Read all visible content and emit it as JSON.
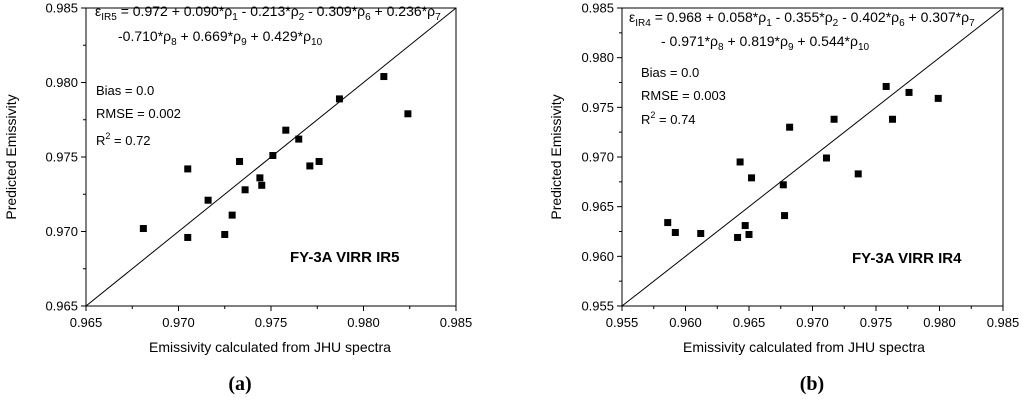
{
  "chart_data": [
    {
      "type": "scatter",
      "panel_label": "(a)",
      "xlabel": "Emissivity calculated from JHU spectra",
      "ylabel": "Predicted Emissivity",
      "xlim": [
        0.965,
        0.985
      ],
      "ylim": [
        0.965,
        0.985
      ],
      "xticks": [
        "0.965",
        "0.970",
        "0.975",
        "0.980",
        "0.985"
      ],
      "yticks": [
        "0.965",
        "0.970",
        "0.975",
        "0.980",
        "0.985"
      ],
      "equation": {
        "symbol": "ε",
        "symbol_sub": "IR5",
        "line1": [
          {
            "t": " = 0.972 + 0.090*ρ"
          },
          {
            "s": "1"
          },
          {
            "t": " - 0.213*ρ"
          },
          {
            "s": "2"
          },
          {
            "t": " - 0.309*ρ"
          },
          {
            "s": "6"
          },
          {
            "t": " + 0.236*ρ"
          },
          {
            "s": "7"
          }
        ],
        "line2": [
          {
            "t": "-0.710*ρ"
          },
          {
            "s": "8"
          },
          {
            "t": " + 0.669*ρ"
          },
          {
            "s": "9"
          },
          {
            "t": " + 0.429*ρ"
          },
          {
            "s": "10"
          }
        ]
      },
      "bias": "Bias = 0.0",
      "rmse": "RMSE = 0.002",
      "r2_prefix": "R",
      "r2_sup": "2",
      "r2_value": " = 0.72",
      "annotation": "FY-3A VIRR IR5",
      "reference_line": "1:1",
      "points": [
        {
          "x": 0.9681,
          "y": 0.9702
        },
        {
          "x": 0.9705,
          "y": 0.9742
        },
        {
          "x": 0.9705,
          "y": 0.9696
        },
        {
          "x": 0.9716,
          "y": 0.9721
        },
        {
          "x": 0.9725,
          "y": 0.9698
        },
        {
          "x": 0.9729,
          "y": 0.9711
        },
        {
          "x": 0.9733,
          "y": 0.9747
        },
        {
          "x": 0.9736,
          "y": 0.9728
        },
        {
          "x": 0.9744,
          "y": 0.9736
        },
        {
          "x": 0.9745,
          "y": 0.9731
        },
        {
          "x": 0.9751,
          "y": 0.9751
        },
        {
          "x": 0.9758,
          "y": 0.9768
        },
        {
          "x": 0.9765,
          "y": 0.9762
        },
        {
          "x": 0.9771,
          "y": 0.9744
        },
        {
          "x": 0.9776,
          "y": 0.9747
        },
        {
          "x": 0.9787,
          "y": 0.9789
        },
        {
          "x": 0.9811,
          "y": 0.9804
        },
        {
          "x": 0.9824,
          "y": 0.9779
        }
      ]
    },
    {
      "type": "scatter",
      "panel_label": "(b)",
      "xlabel": "Emissivity calculated from JHU spectra",
      "ylabel": "Predicted Emissivity",
      "xlim": [
        0.955,
        0.985
      ],
      "ylim": [
        0.955,
        0.985
      ],
      "xticks": [
        "0.955",
        "0.960",
        "0.965",
        "0.970",
        "0.975",
        "0.980",
        "0.985"
      ],
      "yticks": [
        "0.955",
        "0.960",
        "0.965",
        "0.970",
        "0.975",
        "0.980",
        "0.985"
      ],
      "equation": {
        "symbol": "ε",
        "symbol_sub": "IR4",
        "line1": [
          {
            "t": " = 0.968 + 0.058*ρ"
          },
          {
            "s": "1"
          },
          {
            "t": " - 0.355*ρ"
          },
          {
            "s": "2"
          },
          {
            "t": " - 0.402*ρ"
          },
          {
            "s": "6"
          },
          {
            "t": " + 0.307*ρ"
          },
          {
            "s": "7"
          }
        ],
        "line2": [
          {
            "t": "- 0.971*ρ"
          },
          {
            "s": "8"
          },
          {
            "t": " + 0.819*ρ"
          },
          {
            "s": "9"
          },
          {
            "t": " + 0.544*ρ"
          },
          {
            "s": "10"
          }
        ]
      },
      "bias": "Bias = 0.0",
      "rmse": "RMSE = 0.003",
      "r2_prefix": "R",
      "r2_sup": "2",
      "r2_value": " = 0.74",
      "annotation": "FY-3A VIRR IR4",
      "reference_line": "1:1",
      "points": [
        {
          "x": 0.9586,
          "y": 0.9634
        },
        {
          "x": 0.9592,
          "y": 0.9624
        },
        {
          "x": 0.9612,
          "y": 0.9623
        },
        {
          "x": 0.9641,
          "y": 0.9619
        },
        {
          "x": 0.9643,
          "y": 0.9695
        },
        {
          "x": 0.9647,
          "y": 0.9631
        },
        {
          "x": 0.965,
          "y": 0.9622
        },
        {
          "x": 0.9652,
          "y": 0.9679
        },
        {
          "x": 0.9677,
          "y": 0.9672
        },
        {
          "x": 0.9678,
          "y": 0.9641
        },
        {
          "x": 0.9682,
          "y": 0.973
        },
        {
          "x": 0.9711,
          "y": 0.9699
        },
        {
          "x": 0.9717,
          "y": 0.9738
        },
        {
          "x": 0.9736,
          "y": 0.9683
        },
        {
          "x": 0.9758,
          "y": 0.9771
        },
        {
          "x": 0.9763,
          "y": 0.9738
        },
        {
          "x": 0.9776,
          "y": 0.9765
        },
        {
          "x": 0.9799,
          "y": 0.9759
        }
      ]
    }
  ]
}
